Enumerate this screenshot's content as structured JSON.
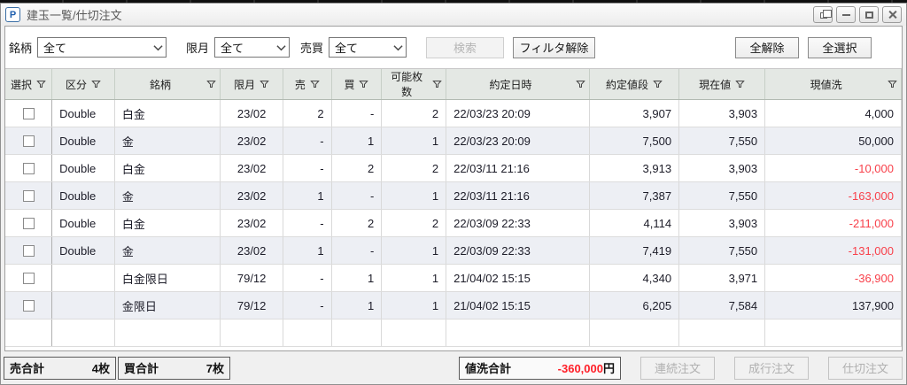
{
  "window": {
    "title": "建玉一覧/仕切注文",
    "icon_letter": "P"
  },
  "toolbar": {
    "filters": [
      {
        "label": "銘柄",
        "value": "全て"
      },
      {
        "label": "限月",
        "value": "全て"
      },
      {
        "label": "売買",
        "value": "全て"
      }
    ],
    "search_label": "検索",
    "clear_filter_label": "フィルタ解除",
    "deselect_all_label": "全解除",
    "select_all_label": "全選択"
  },
  "table": {
    "columns": [
      "選択",
      "区分",
      "銘柄",
      "限月",
      "売",
      "買",
      "可能枚数",
      "約定日時",
      "約定値段",
      "現在値",
      "現値洗"
    ],
    "rows": [
      {
        "kubun": "Double",
        "meigara": "白金",
        "gengetsu": "23/02",
        "sell": "2",
        "buy": "-",
        "available": "2",
        "datetime": "22/03/23 20:09",
        "price": "3,907",
        "current": "3,903",
        "pnl": "4,000",
        "pnl_negative": false
      },
      {
        "kubun": "Double",
        "meigara": "金",
        "gengetsu": "23/02",
        "sell": "-",
        "buy": "1",
        "available": "1",
        "datetime": "22/03/23 20:09",
        "price": "7,500",
        "current": "7,550",
        "pnl": "50,000",
        "pnl_negative": false
      },
      {
        "kubun": "Double",
        "meigara": "白金",
        "gengetsu": "23/02",
        "sell": "-",
        "buy": "2",
        "available": "2",
        "datetime": "22/03/11 21:16",
        "price": "3,913",
        "current": "3,903",
        "pnl": "-10,000",
        "pnl_negative": true
      },
      {
        "kubun": "Double",
        "meigara": "金",
        "gengetsu": "23/02",
        "sell": "1",
        "buy": "-",
        "available": "1",
        "datetime": "22/03/11 21:16",
        "price": "7,387",
        "current": "7,550",
        "pnl": "-163,000",
        "pnl_negative": true
      },
      {
        "kubun": "Double",
        "meigara": "白金",
        "gengetsu": "23/02",
        "sell": "-",
        "buy": "2",
        "available": "2",
        "datetime": "22/03/09 22:33",
        "price": "4,114",
        "current": "3,903",
        "pnl": "-211,000",
        "pnl_negative": true
      },
      {
        "kubun": "Double",
        "meigara": "金",
        "gengetsu": "23/02",
        "sell": "1",
        "buy": "-",
        "available": "1",
        "datetime": "22/03/09 22:33",
        "price": "7,419",
        "current": "7,550",
        "pnl": "-131,000",
        "pnl_negative": true
      },
      {
        "kubun": "",
        "meigara": "白金限日",
        "gengetsu": "79/12",
        "sell": "-",
        "buy": "1",
        "available": "1",
        "datetime": "21/04/02 15:15",
        "price": "4,340",
        "current": "3,971",
        "pnl": "-36,900",
        "pnl_negative": true
      },
      {
        "kubun": "",
        "meigara": "金限日",
        "gengetsu": "79/12",
        "sell": "-",
        "buy": "1",
        "available": "1",
        "datetime": "21/04/02 15:15",
        "price": "6,205",
        "current": "7,584",
        "pnl": "137,900",
        "pnl_negative": false
      }
    ]
  },
  "footer": {
    "sell_total_label": "売合計",
    "sell_total_value": "4枚",
    "buy_total_label": "買合計",
    "buy_total_value": "7枚",
    "pnl_total_label": "値洗合計",
    "pnl_total_value": "-360,000",
    "pnl_total_unit": "円",
    "buttons": [
      "連続注文",
      "成行注文",
      "仕切注文"
    ]
  },
  "colors": {
    "negative_red": "#f8404a",
    "total_red": "#ff1f28",
    "header_bg": "#e4e8e4",
    "row_alt_bg": "#edeff4",
    "icon_blue": "#1f5fae"
  }
}
